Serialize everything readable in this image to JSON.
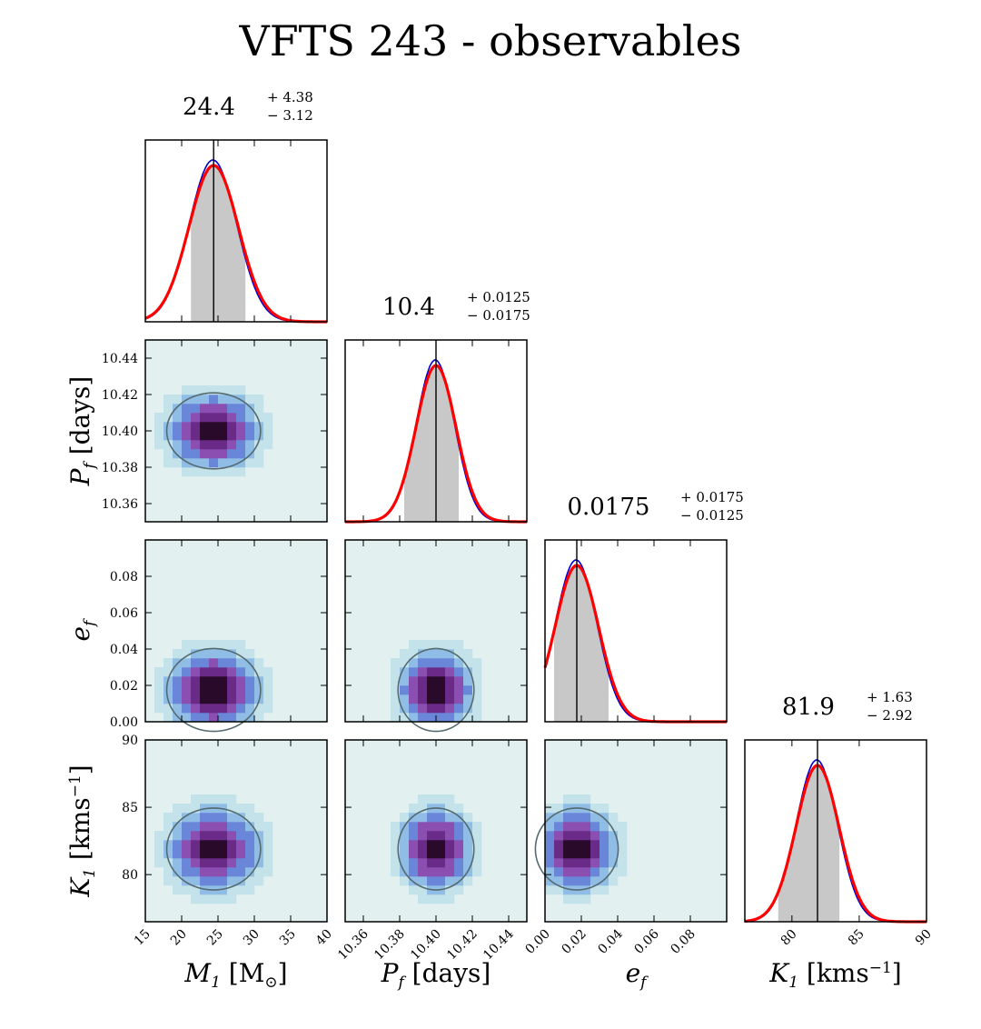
{
  "figure": {
    "title": "VFTS 243 - observables"
  },
  "colors": {
    "fit": "#ff0000",
    "posterior": "#0000cc",
    "fill": "#c8c8c8",
    "contour": "#556b70",
    "bg2d": "#e2f0ef",
    "median": "#000000"
  },
  "chart_data": {
    "type": "corner",
    "parameters": [
      {
        "key": "M1",
        "label_main": "M",
        "label_sub": "1",
        "label_rest": " [M",
        "label_sub2": "⊙",
        "label_end": "]",
        "median": 24.4,
        "plus": 4.38,
        "minus": 3.12,
        "sigma": 3.4,
        "range": [
          15,
          40
        ],
        "ticks": [
          15,
          20,
          25,
          30,
          35,
          40
        ],
        "ticklabels": [
          "15",
          "20",
          "25",
          "30",
          "35",
          "40"
        ]
      },
      {
        "key": "Pf",
        "label_main": "P",
        "label_sub": "f",
        "label_rest": " [days]",
        "median": 10.4,
        "plus": 0.0125,
        "minus": 0.0175,
        "sigma": 0.011,
        "range": [
          10.35,
          10.45
        ],
        "ticks": [
          10.36,
          10.38,
          10.4,
          10.42,
          10.44
        ],
        "ticklabels": [
          "10.36",
          "10.38",
          "10.40",
          "10.42",
          "10.44"
        ]
      },
      {
        "key": "ef",
        "label_main": "e",
        "label_sub": "f",
        "label_rest": "",
        "median": 0.0175,
        "plus": 0.0175,
        "minus": 0.0125,
        "sigma": 0.012,
        "range": [
          0.0,
          0.1
        ],
        "ticks": [
          0.0,
          0.02,
          0.04,
          0.06,
          0.08
        ],
        "ticklabels": [
          "0.00",
          "0.02",
          "0.04",
          "0.06",
          "0.08"
        ]
      },
      {
        "key": "K1",
        "label_main": "K",
        "label_sub": "1",
        "label_rest": " [kms",
        "label_sup": "−1",
        "label_end": "]",
        "median": 81.9,
        "plus": 1.63,
        "minus": 2.92,
        "sigma": 1.6,
        "range": [
          76.5,
          90
        ],
        "ticks": [
          80,
          85,
          90
        ],
        "ticklabels": [
          "80",
          "85",
          "90"
        ]
      }
    ],
    "diag_titles": [
      {
        "value": "24.4",
        "plus": "+ 4.38",
        "minus": "− 3.12"
      },
      {
        "value": "10.4",
        "plus": "+ 0.0125",
        "minus": "− 0.0175"
      },
      {
        "value": "0.0175",
        "plus": "+ 0.0175",
        "minus": "− 0.0125"
      },
      {
        "value": "81.9",
        "plus": "+ 1.63",
        "minus": "− 2.92"
      }
    ],
    "x_labels_shown": [
      "M1 [M⊙]",
      "Pf [days]",
      "ef",
      "K1 [kms−1]"
    ],
    "y_labels_shown": [
      "Pf [days]",
      "ef",
      "K1 [kms−1]"
    ]
  }
}
